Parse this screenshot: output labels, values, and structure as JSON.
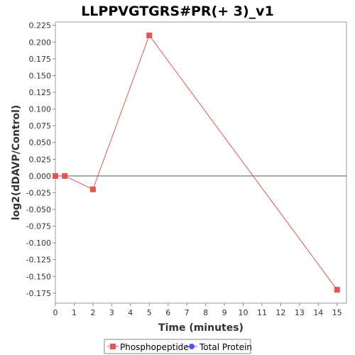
{
  "chart_data": {
    "type": "line",
    "title": "LLPPVGTGRS#PR(+ 3)_v1",
    "xlabel": "Time (minutes)",
    "ylabel": "log2(dDAVP/Control)",
    "xlim": [
      0,
      15.5
    ],
    "ylim": [
      -0.19,
      0.23
    ],
    "x_ticks": [
      0,
      1,
      2,
      3,
      4,
      5,
      6,
      7,
      8,
      9,
      10,
      11,
      12,
      13,
      14,
      15
    ],
    "y_ticks": [
      0.225,
      0.2,
      0.175,
      0.15,
      0.125,
      0.1,
      0.075,
      0.05,
      0.025,
      0.0,
      -0.025,
      -0.05,
      -0.075,
      -0.1,
      -0.125,
      -0.15,
      -0.175
    ],
    "y_tick_labels": [
      "0.225",
      "0.200",
      "0.175",
      "0.150",
      "0.125",
      "0.100",
      "0.075",
      "0.050",
      "0.025",
      "0.000",
      "-0.025",
      "-0.050",
      "-0.075",
      "-0.100",
      "-0.125",
      "-0.150",
      "-0.175"
    ],
    "zero_line": true,
    "grid": false,
    "legend_position": "bottom",
    "series": [
      {
        "name": "Phosphopeptide",
        "color": "#e05555",
        "marker": "square",
        "points": [
          {
            "x": 0,
            "y": 0.0
          },
          {
            "x": 0.5,
            "y": 0.0
          },
          {
            "x": 2,
            "y": -0.02
          },
          {
            "x": 5,
            "y": 0.21
          },
          {
            "x": 15,
            "y": -0.17
          }
        ]
      },
      {
        "name": "Total Protein",
        "color": "#5555ee",
        "marker": "circle",
        "points": []
      }
    ]
  }
}
